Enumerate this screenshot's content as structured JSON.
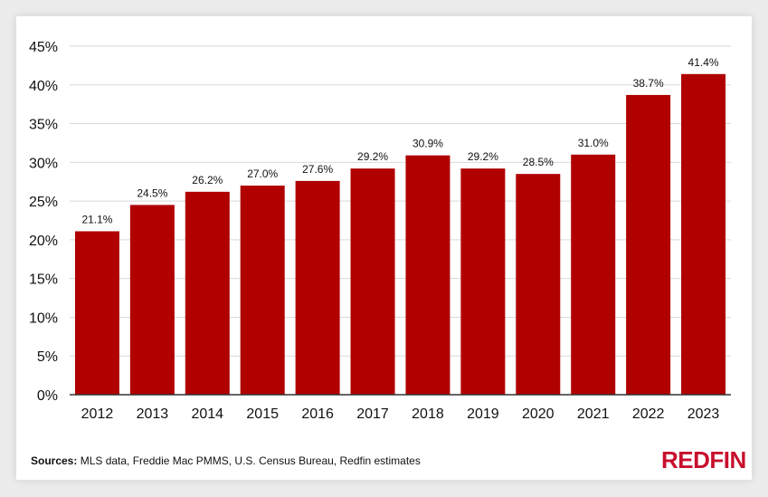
{
  "chart_data": {
    "type": "bar",
    "title": "",
    "xlabel": "",
    "ylabel": "",
    "categories": [
      "2012",
      "2013",
      "2014",
      "2015",
      "2016",
      "2017",
      "2018",
      "2019",
      "2020",
      "2021",
      "2022",
      "2023"
    ],
    "values": [
      21.1,
      24.5,
      26.2,
      27.0,
      27.6,
      29.2,
      30.9,
      29.2,
      28.5,
      31.0,
      38.7,
      41.4
    ],
    "data_labels": [
      "21.1%",
      "24.5%",
      "26.2%",
      "27.0%",
      "27.6%",
      "29.2%",
      "30.9%",
      "29.2%",
      "28.5%",
      "31.0%",
      "38.7%",
      "41.4%"
    ],
    "ylim": [
      0,
      45
    ],
    "y_ticks": [
      "0%",
      "5%",
      "10%",
      "15%",
      "20%",
      "25%",
      "30%",
      "35%",
      "40%",
      "45%"
    ],
    "grid": true,
    "bar_color": "#b00000"
  },
  "footer": {
    "sources_label": "Sources:",
    "sources_text": " MLS data, Freddie Mac PMMS, U.S. Census Bureau, Redfin estimates"
  },
  "brand": {
    "logo_text": "REDFIN",
    "color": "#c8102e"
  }
}
